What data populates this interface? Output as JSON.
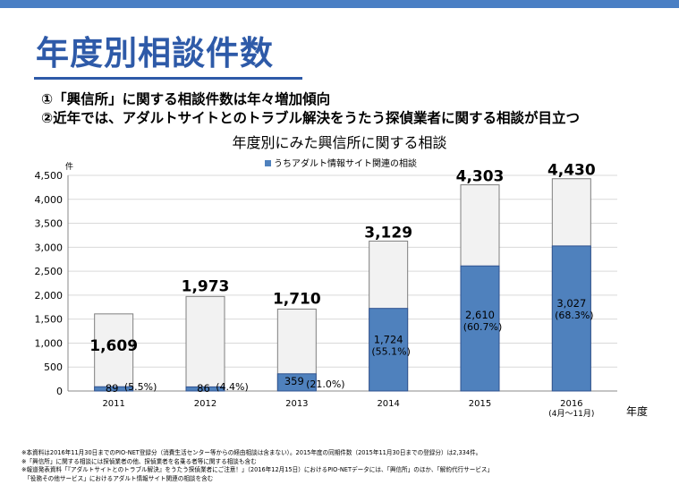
{
  "colors": {
    "accent": "#2e5aa8",
    "topbar": "#4a7fc4",
    "bar_total": "#f2f2f2",
    "bar_adult": "#4f81bd"
  },
  "header": {
    "title": "年度別相談件数",
    "bullets": [
      "①「興信所」に関する相談件数は年々増加傾向",
      "②近年では、アダルトサイトとのトラブル解決をうたう探偵業者に関する相談が目立つ"
    ]
  },
  "chart_data": {
    "type": "bar",
    "title": "年度別にみた興信所に関する相談",
    "xlabel": "年度",
    "ylabel": "件",
    "ylim": [
      0,
      4500
    ],
    "yticks": [
      "0",
      "500",
      "1,000",
      "1,500",
      "2,000",
      "2,500",
      "3,000",
      "3,500",
      "4,000",
      "4,500"
    ],
    "categories": [
      "2011",
      "2012",
      "2013",
      "2014",
      "2015",
      "2016"
    ],
    "category_sublabels": [
      "",
      "",
      "",
      "",
      "",
      "(4月～11月)"
    ],
    "legend": "top-center",
    "series": [
      {
        "name": "",
        "values": [
          1609,
          1973,
          1710,
          3129,
          4303,
          4430
        ],
        "labels": [
          "1,609",
          "1,973",
          "1,710",
          "3,129",
          "4,303",
          "4,430"
        ]
      },
      {
        "name": "うちアダルト情報サイト関連の相談",
        "values": [
          89,
          86,
          359,
          1724,
          2610,
          3027
        ],
        "labels": [
          "89",
          "86",
          "359",
          "1,724",
          "2,610",
          "3,027"
        ],
        "percent_labels": [
          "(5.5%)",
          "(4.4%)",
          "(21.0%)",
          "(55.1%)",
          "(60.7%)",
          "(68.3%)"
        ]
      }
    ]
  },
  "footnotes": [
    "※本資料は2016年11月30日までのPIO-NET登録分（消費生活センター等からの経由相談は含まない）。2015年度の同期件数（2015年11月30日までの登録分）は2,334件。",
    "※「興信所」に関する相談には探偵業者の他、探偵業者を名乗る者等に関する相談も含む",
    "※報道発表資料「『アダルトサイトとのトラブル解決』をうたう探偵業者にご注意！」（2016年12月15日）におけるPIO-NETデータには、「興信所」のほか、「解約代行サービス」",
    "　「役務その他サービス」におけるアダルト情報サイト関連の相談を含む"
  ]
}
